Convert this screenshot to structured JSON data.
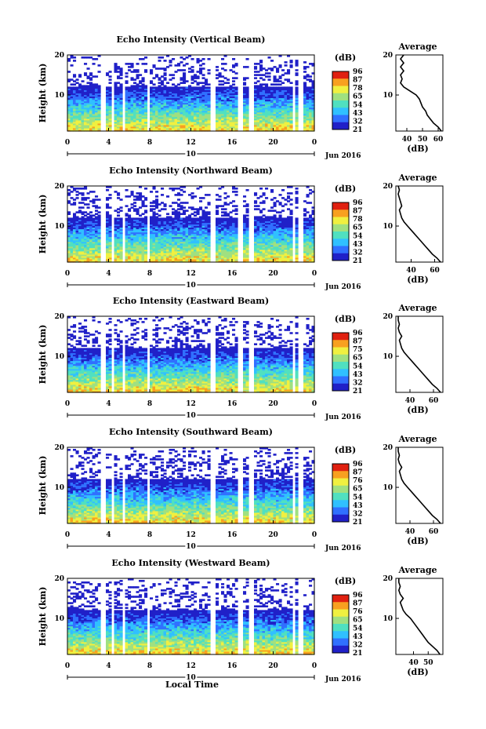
{
  "x_axis_title": "Local Time",
  "chart_data": [
    {
      "type": "heatmap",
      "title": "Echo Intensity (Vertical Beam)",
      "ylabel": "Height (km)",
      "y_ticks": [
        "20",
        "10"
      ],
      "x_ticks": [
        "0",
        "4",
        "8",
        "12",
        "16",
        "20",
        "0"
      ],
      "date_label": "10",
      "month_label": "Jun 2016",
      "colorbar_title": "(dB)",
      "colorbar_ticks": [
        "96",
        "87",
        "78",
        "65",
        "54",
        "43",
        "32",
        "21"
      ],
      "colorscale": [
        "#2020c8",
        "#3070ff",
        "#30c0ff",
        "#50e0c0",
        "#a0e080",
        "#f0f040",
        "#f8a020",
        "#e02010"
      ],
      "xlim": [
        0,
        24
      ],
      "ylim": [
        1,
        20
      ],
      "gaps_hours": [
        [
          3.2,
          3.6
        ],
        [
          4.3,
          4.6
        ],
        [
          5.3,
          5.7
        ],
        [
          7.7,
          8.1
        ],
        [
          13.8,
          14.3
        ],
        [
          16.6,
          17.0
        ],
        [
          17.7,
          18.1
        ],
        [
          21.8,
          22.1
        ],
        [
          22.5,
          22.8
        ]
      ],
      "profile": {
        "title": "Average",
        "xlabel": "(dB)",
        "x_ticks": [
          "40",
          "50",
          "60"
        ],
        "y_ticks": [
          "20",
          "10"
        ],
        "xlim": [
          33,
          63
        ],
        "ylim": [
          1,
          20
        ],
        "height_km": [
          1,
          2,
          3,
          4,
          5,
          6,
          7,
          8,
          9,
          10,
          11,
          12,
          13,
          14,
          15,
          16,
          17,
          18,
          19,
          20
        ],
        "db": [
          62,
          60,
          57,
          55,
          53,
          52,
          50,
          49,
          48,
          46,
          42,
          38,
          36,
          37,
          36,
          38,
          36,
          38,
          36,
          38
        ]
      }
    },
    {
      "type": "heatmap",
      "title": "Echo Intensity (Northward Beam)",
      "ylabel": "Height (km)",
      "y_ticks": [
        "20",
        "10"
      ],
      "x_ticks": [
        "0",
        "4",
        "8",
        "12",
        "16",
        "20",
        "0"
      ],
      "date_label": "10",
      "month_label": "Jun 2016",
      "colorbar_title": "(dB)",
      "colorbar_ticks": [
        "96",
        "87",
        "78",
        "65",
        "54",
        "43",
        "32",
        "21"
      ],
      "xlim": [
        0,
        24
      ],
      "ylim": [
        1,
        20
      ],
      "profile": {
        "title": "Average",
        "xlabel": "(dB)",
        "x_ticks": [
          "40",
          "60"
        ],
        "y_ticks": [
          "20",
          "10"
        ],
        "xlim": [
          27,
          67
        ],
        "ylim": [
          1,
          20
        ],
        "height_km": [
          1,
          2,
          3,
          4,
          5,
          6,
          7,
          8,
          9,
          10,
          11,
          12,
          13,
          14,
          15,
          16,
          17,
          18,
          19,
          20
        ],
        "db": [
          65,
          62,
          58,
          55,
          52,
          49,
          46,
          43,
          40,
          37,
          34,
          32,
          31,
          30,
          32,
          31,
          30,
          29,
          30,
          29
        ]
      }
    },
    {
      "type": "heatmap",
      "title": "Echo Intensity (Eastward Beam)",
      "ylabel": "Height (km)",
      "y_ticks": [
        "20",
        "10"
      ],
      "x_ticks": [
        "0",
        "4",
        "8",
        "12",
        "16",
        "20",
        "0"
      ],
      "date_label": "10",
      "month_label": "Jun 2016",
      "colorbar_title": "(dB)",
      "colorbar_ticks": [
        "96",
        "87",
        "75",
        "65",
        "54",
        "43",
        "32",
        "21"
      ],
      "xlim": [
        0,
        24
      ],
      "ylim": [
        1,
        20
      ],
      "profile": {
        "title": "Average",
        "xlabel": "(dB)",
        "x_ticks": [
          "40",
          "60"
        ],
        "y_ticks": [
          "20",
          "10"
        ],
        "xlim": [
          28,
          68
        ],
        "ylim": [
          1,
          20
        ],
        "height_km": [
          1,
          2,
          3,
          4,
          5,
          6,
          7,
          8,
          9,
          10,
          11,
          12,
          13,
          14,
          15,
          16,
          17,
          18,
          19,
          20
        ],
        "db": [
          66,
          63,
          59,
          56,
          53,
          50,
          47,
          44,
          41,
          38,
          35,
          33,
          32,
          31,
          33,
          31,
          30,
          31,
          30,
          30
        ]
      }
    },
    {
      "type": "heatmap",
      "title": "Echo Intensity (Southward Beam)",
      "ylabel": "Height (km)",
      "y_ticks": [
        "20",
        "10"
      ],
      "x_ticks": [
        "0",
        "4",
        "8",
        "12",
        "16",
        "20",
        "0"
      ],
      "date_label": "10",
      "month_label": "Jun 2016",
      "colorbar_title": "(dB)",
      "colorbar_ticks": [
        "96",
        "87",
        "76",
        "65",
        "54",
        "43",
        "32",
        "21"
      ],
      "xlim": [
        0,
        24
      ],
      "ylim": [
        1,
        20
      ],
      "profile": {
        "title": "Average",
        "xlabel": "(dB)",
        "x_ticks": [
          "40",
          "60"
        ],
        "y_ticks": [
          "20",
          "10"
        ],
        "xlim": [
          28,
          68
        ],
        "ylim": [
          1,
          20
        ],
        "height_km": [
          1,
          2,
          3,
          4,
          5,
          6,
          7,
          8,
          9,
          10,
          11,
          12,
          13,
          14,
          15,
          16,
          17,
          18,
          19,
          20
        ],
        "db": [
          66,
          63,
          59,
          56,
          53,
          50,
          47,
          44,
          41,
          38,
          35,
          33,
          32,
          31,
          33,
          31,
          30,
          31,
          30,
          30
        ]
      }
    },
    {
      "type": "heatmap",
      "title": "Echo Intensity (Westward Beam)",
      "ylabel": "Height (km)",
      "y_ticks": [
        "20",
        "10"
      ],
      "x_ticks": [
        "0",
        "4",
        "8",
        "12",
        "16",
        "20",
        "0"
      ],
      "date_label": "10",
      "month_label": "Jun 2016",
      "colorbar_title": "(dB)",
      "colorbar_ticks": [
        "96",
        "87",
        "76",
        "65",
        "54",
        "43",
        "32",
        "21"
      ],
      "xlim": [
        0,
        24
      ],
      "ylim": [
        1,
        20
      ],
      "profile": {
        "title": "Average",
        "xlabel": "(dB)",
        "x_ticks": [
          "40",
          "50"
        ],
        "y_ticks": [
          "20",
          "10"
        ],
        "xlim": [
          28,
          60
        ],
        "ylim": [
          1,
          20
        ],
        "height_km": [
          1,
          2,
          3,
          4,
          5,
          6,
          7,
          8,
          9,
          10,
          11,
          12,
          13,
          14,
          15,
          16,
          17,
          18,
          19,
          20
        ],
        "db": [
          58,
          56,
          53,
          50,
          48,
          46,
          44,
          42,
          40,
          38,
          35,
          33,
          32,
          31,
          33,
          31,
          30,
          31,
          30,
          30
        ]
      }
    }
  ]
}
